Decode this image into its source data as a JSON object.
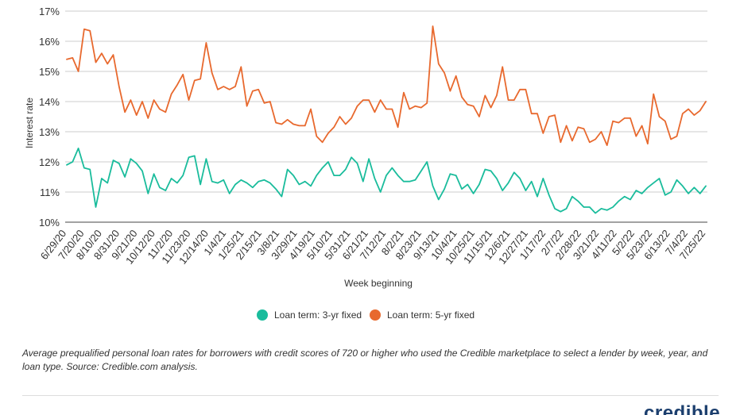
{
  "chart_data": {
    "type": "line",
    "ylabel": "Interest rate",
    "xlabel": "Week beginning",
    "y_ticks": [
      "10%",
      "11%",
      "12%",
      "13%",
      "14%",
      "15%",
      "16%",
      "17%"
    ],
    "ylim": [
      10,
      17
    ],
    "x_tick_labels": [
      "6/29/20",
      "7/20/20",
      "8/10/20",
      "8/31/20",
      "9/21/20",
      "10/12/20",
      "11/2/20",
      "11/23/20",
      "12/14/20",
      "1/4/21",
      "1/25/21",
      "2/15/21",
      "3/8/21",
      "3/29/21",
      "4/19/21",
      "5/10/21",
      "5/31/21",
      "6/21/21",
      "7/12/21",
      "8/2/21",
      "8/23/21",
      "9/13/21",
      "10/4/21",
      "10/25/21",
      "11/15/21",
      "12/6/21",
      "12/27/21",
      "1/17/22",
      "2/7/22",
      "2/28/22",
      "3/21/22",
      "4/11/22",
      "5/2/22",
      "5/23/22",
      "6/13/22",
      "7/4/22",
      "7/25/22"
    ],
    "grid": true,
    "legend_position": "bottom",
    "series": [
      {
        "name": "Loan term: 3-yr fixed",
        "color": "#1abc9c",
        "values": [
          11.9,
          12.0,
          12.45,
          11.8,
          11.75,
          10.5,
          11.45,
          11.3,
          12.05,
          11.95,
          11.5,
          12.1,
          11.95,
          11.7,
          10.95,
          11.6,
          11.15,
          11.05,
          11.45,
          11.3,
          11.55,
          12.15,
          12.2,
          11.25,
          12.1,
          11.35,
          11.3,
          11.4,
          10.95,
          11.25,
          11.4,
          11.3,
          11.15,
          11.35,
          11.4,
          11.3,
          11.1,
          10.85,
          11.75,
          11.55,
          11.25,
          11.35,
          11.2,
          11.55,
          11.8,
          12.0,
          11.55,
          11.55,
          11.75,
          12.15,
          11.95,
          11.35,
          12.1,
          11.45,
          11.0,
          11.55,
          11.8,
          11.55,
          11.35,
          11.35,
          11.4,
          11.7,
          12.0,
          11.2,
          10.75,
          11.1,
          11.6,
          11.55,
          11.1,
          11.25,
          10.95,
          11.25,
          11.75,
          11.7,
          11.45,
          11.05,
          11.3,
          11.65,
          11.45,
          11.05,
          11.35,
          10.85,
          11.45,
          10.9,
          10.45,
          10.35,
          10.45,
          10.85,
          10.7,
          10.5,
          10.5,
          10.3,
          10.45,
          10.4,
          10.5,
          10.7,
          10.85,
          10.75,
          11.05,
          10.95,
          11.15,
          11.3,
          11.45,
          10.9,
          11.0,
          11.4,
          11.2,
          10.95,
          11.15,
          10.95,
          11.2
        ]
      },
      {
        "name": "Loan term: 5-yr fixed",
        "color": "#e8692e",
        "values": [
          15.4,
          15.45,
          15.0,
          16.4,
          16.35,
          15.3,
          15.6,
          15.25,
          15.55,
          14.5,
          13.65,
          14.05,
          13.55,
          14.0,
          13.45,
          14.05,
          13.75,
          13.65,
          14.25,
          14.55,
          14.9,
          14.05,
          14.7,
          14.75,
          15.95,
          14.95,
          14.4,
          14.5,
          14.4,
          14.5,
          15.15,
          13.85,
          14.35,
          14.4,
          13.95,
          14.0,
          13.3,
          13.25,
          13.4,
          13.25,
          13.2,
          13.2,
          13.75,
          12.85,
          12.65,
          12.95,
          13.15,
          13.5,
          13.25,
          13.45,
          13.85,
          14.05,
          14.05,
          13.65,
          14.05,
          13.75,
          13.75,
          13.15,
          14.3,
          13.75,
          13.85,
          13.8,
          13.95,
          16.5,
          15.25,
          14.95,
          14.35,
          14.85,
          14.15,
          13.9,
          13.85,
          13.5,
          14.2,
          13.8,
          14.2,
          15.15,
          14.05,
          14.05,
          14.4,
          14.4,
          13.6,
          13.6,
          12.95,
          13.5,
          13.55,
          12.65,
          13.2,
          12.7,
          13.15,
          13.1,
          12.65,
          12.75,
          13.0,
          12.55,
          13.35,
          13.3,
          13.45,
          13.45,
          12.85,
          13.2,
          12.6,
          14.25,
          13.5,
          13.35,
          12.75,
          12.85,
          13.6,
          13.75,
          13.55,
          13.7,
          14.0
        ]
      }
    ]
  },
  "caption": "Average prequalified personal loan rates for borrowers with credit scores of 720 or higher who used the Credible marketplace to select a lender by week, year, and loan type. Source: Credible.com analysis.",
  "logo_text": "credible"
}
